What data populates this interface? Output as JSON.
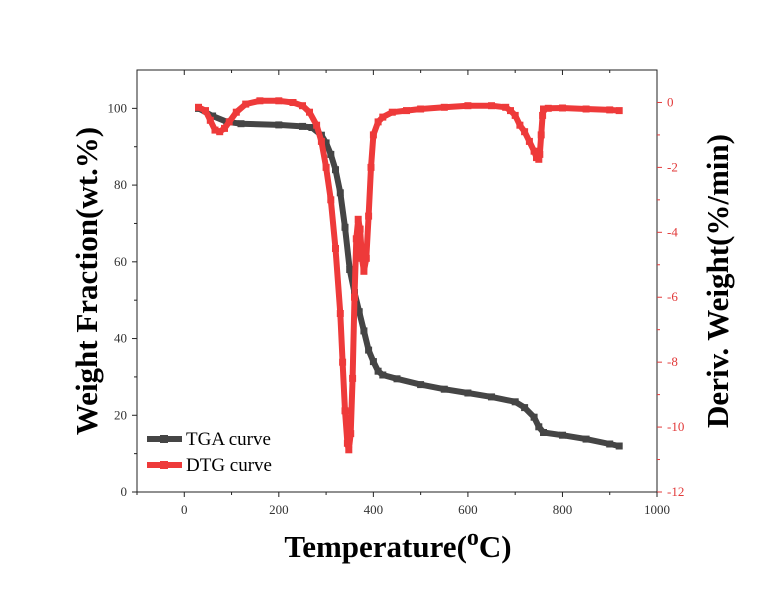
{
  "chart_data": {
    "type": "line",
    "xlabel_main": "Temperature(",
    "xlabel_sup": "o",
    "xlabel_end": "C)",
    "ylabel_left": "Weight Fraction(wt.%)",
    "ylabel_right": "Deriv. Weight(%/min)",
    "xlim": [
      -100,
      1000
    ],
    "ylim_left": [
      0,
      110
    ],
    "ylim_right": [
      -12,
      1
    ],
    "xticks": [
      "0",
      "200",
      "400",
      "600",
      "800",
      "1000"
    ],
    "yticks_left": [
      "0",
      "20",
      "40",
      "60",
      "80",
      "100"
    ],
    "yticks_right": [
      "0",
      "-2",
      "-4",
      "-6",
      "-8",
      "-10",
      "-12"
    ],
    "legend_position": "bottom-left",
    "grid": false,
    "series": [
      {
        "name": "TGA curve",
        "color": "#454545",
        "axis": "left",
        "x": [
          30,
          60,
          90,
          120,
          200,
          250,
          270,
          290,
          300,
          310,
          320,
          330,
          340,
          350,
          360,
          370,
          380,
          390,
          400,
          410,
          420,
          450,
          500,
          550,
          600,
          650,
          700,
          720,
          740,
          750,
          760,
          800,
          850,
          900,
          920
        ],
        "y": [
          100,
          98,
          96.5,
          96,
          95.7,
          95.3,
          95,
          93,
          91,
          88,
          84,
          78,
          69,
          58,
          52,
          47,
          42,
          37,
          34,
          31.5,
          30.5,
          29.5,
          28,
          26.8,
          25.8,
          24.8,
          23.5,
          22,
          19.5,
          17,
          15.5,
          14.8,
          13.8,
          12.5,
          12
        ]
      },
      {
        "name": "DTG curve",
        "color": "#ee3a3a",
        "axis": "right",
        "x": [
          30,
          45,
          55,
          65,
          75,
          85,
          95,
          110,
          130,
          160,
          200,
          230,
          250,
          265,
          280,
          290,
          300,
          310,
          320,
          330,
          335,
          340,
          345,
          348,
          352,
          356,
          360,
          364,
          368,
          372,
          376,
          380,
          385,
          390,
          395,
          400,
          410,
          420,
          440,
          470,
          500,
          550,
          600,
          650,
          680,
          690,
          700,
          710,
          720,
          730,
          740,
          745,
          750,
          752,
          755,
          758,
          760,
          770,
          800,
          850,
          900,
          920
        ],
        "y": [
          -0.15,
          -0.25,
          -0.55,
          -0.85,
          -0.9,
          -0.8,
          -0.6,
          -0.3,
          -0.05,
          0.05,
          0.05,
          0.0,
          -0.1,
          -0.3,
          -0.7,
          -1.2,
          -2.0,
          -3.0,
          -4.5,
          -6.5,
          -8.0,
          -9.5,
          -10.5,
          -10.7,
          -10.2,
          -8.5,
          -6.0,
          -4.2,
          -3.6,
          -3.9,
          -4.8,
          -5.2,
          -4.8,
          -3.5,
          -2.0,
          -1.0,
          -0.6,
          -0.45,
          -0.3,
          -0.25,
          -0.2,
          -0.15,
          -0.1,
          -0.1,
          -0.15,
          -0.25,
          -0.4,
          -0.7,
          -0.9,
          -1.2,
          -1.5,
          -1.7,
          -1.75,
          -1.6,
          -1.0,
          -0.4,
          -0.2,
          -0.18,
          -0.17,
          -0.2,
          -0.23,
          -0.25
        ]
      }
    ]
  }
}
